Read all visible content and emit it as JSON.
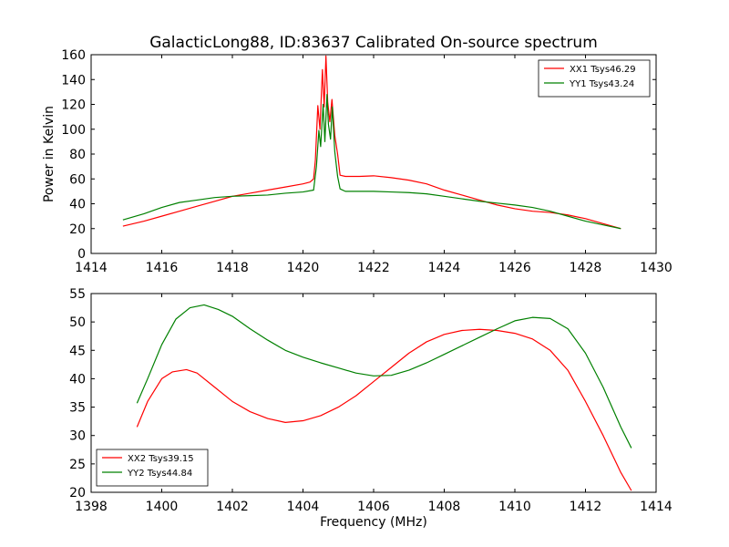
{
  "title": "GalacticLong88, ID:83637 Calibrated On-source spectrum",
  "colors": {
    "red": "#ff0000",
    "green": "#008000"
  },
  "chart_data": [
    {
      "type": "line",
      "xlabel": "",
      "ylabel": "Power in Kelvin",
      "xlim": [
        1414,
        1430
      ],
      "ylim": [
        0,
        160
      ],
      "xticks": [
        1414,
        1416,
        1418,
        1420,
        1422,
        1424,
        1426,
        1428,
        1430
      ],
      "yticks": [
        0,
        20,
        40,
        60,
        80,
        100,
        120,
        140,
        160
      ],
      "legend": "top-right",
      "grid": false,
      "series": [
        {
          "name": "XX1 Tsys46.29",
          "color": "#ff0000",
          "points": [
            [
              1414.9,
              22
            ],
            [
              1415.5,
              26
            ],
            [
              1416,
              30
            ],
            [
              1416.5,
              34
            ],
            [
              1417,
              38
            ],
            [
              1417.5,
              42
            ],
            [
              1418,
              46
            ],
            [
              1418.5,
              48.5
            ],
            [
              1419,
              51
            ],
            [
              1419.5,
              53.5
            ],
            [
              1420,
              56
            ],
            [
              1420.2,
              57.5
            ],
            [
              1420.3,
              60
            ],
            [
              1420.35,
              75
            ],
            [
              1420.42,
              119
            ],
            [
              1420.48,
              100
            ],
            [
              1420.55,
              148
            ],
            [
              1420.6,
              118
            ],
            [
              1420.65,
              159
            ],
            [
              1420.7,
              122
            ],
            [
              1420.76,
              106
            ],
            [
              1420.82,
              124
            ],
            [
              1420.9,
              95
            ],
            [
              1420.98,
              80
            ],
            [
              1421.05,
              63
            ],
            [
              1421.2,
              62
            ],
            [
              1421.6,
              62
            ],
            [
              1422,
              62.5
            ],
            [
              1422.5,
              61
            ],
            [
              1423,
              59
            ],
            [
              1423.5,
              56
            ],
            [
              1424,
              51
            ],
            [
              1424.5,
              47
            ],
            [
              1425,
              43
            ],
            [
              1425.5,
              39
            ],
            [
              1426,
              36
            ],
            [
              1426.5,
              34
            ],
            [
              1427,
              33
            ],
            [
              1427.5,
              31
            ],
            [
              1428,
              28
            ],
            [
              1428.5,
              24
            ],
            [
              1429,
              20
            ]
          ]
        },
        {
          "name": "YY1 Tsys43.24",
          "color": "#008000",
          "points": [
            [
              1414.9,
              27
            ],
            [
              1415.5,
              32
            ],
            [
              1416,
              37
            ],
            [
              1416.5,
              41
            ],
            [
              1417,
              43
            ],
            [
              1417.5,
              45
            ],
            [
              1418,
              46
            ],
            [
              1418.5,
              46.5
            ],
            [
              1419,
              47
            ],
            [
              1419.5,
              48.5
            ],
            [
              1420,
              49.5
            ],
            [
              1420.3,
              51
            ],
            [
              1420.38,
              70
            ],
            [
              1420.45,
              99
            ],
            [
              1420.5,
              86
            ],
            [
              1420.57,
              120
            ],
            [
              1420.62,
              90
            ],
            [
              1420.68,
              128
            ],
            [
              1420.72,
              104
            ],
            [
              1420.78,
              92
            ],
            [
              1420.83,
              118
            ],
            [
              1420.9,
              82
            ],
            [
              1420.98,
              62
            ],
            [
              1421.05,
              52
            ],
            [
              1421.2,
              50
            ],
            [
              1422,
              50
            ],
            [
              1422.5,
              49.5
            ],
            [
              1423,
              49
            ],
            [
              1423.5,
              48
            ],
            [
              1424,
              46
            ],
            [
              1424.5,
              44
            ],
            [
              1425,
              42
            ],
            [
              1425.5,
              40.5
            ],
            [
              1426,
              39
            ],
            [
              1426.5,
              37
            ],
            [
              1427,
              34
            ],
            [
              1427.5,
              30
            ],
            [
              1428,
              26
            ],
            [
              1428.5,
              23
            ],
            [
              1429,
              20
            ]
          ]
        }
      ]
    },
    {
      "type": "line",
      "xlabel": "Frequency (MHz)",
      "ylabel": "",
      "xlim": [
        1398,
        1414
      ],
      "ylim": [
        20,
        55
      ],
      "xticks": [
        1398,
        1400,
        1402,
        1404,
        1406,
        1408,
        1410,
        1412,
        1414
      ],
      "yticks": [
        20,
        25,
        30,
        35,
        40,
        45,
        50,
        55
      ],
      "legend": "bottom-left",
      "grid": false,
      "series": [
        {
          "name": "XX2 Tsys39.15",
          "color": "#ff0000",
          "points": [
            [
              1399.3,
              31.5
            ],
            [
              1399.6,
              36
            ],
            [
              1400,
              40
            ],
            [
              1400.3,
              41.2
            ],
            [
              1400.7,
              41.6
            ],
            [
              1401,
              41
            ],
            [
              1401.5,
              38.5
            ],
            [
              1402,
              36
            ],
            [
              1402.5,
              34.2
            ],
            [
              1403,
              33
            ],
            [
              1403.5,
              32.3
            ],
            [
              1404,
              32.6
            ],
            [
              1404.5,
              33.5
            ],
            [
              1405,
              35
            ],
            [
              1405.5,
              37
            ],
            [
              1406,
              39.5
            ],
            [
              1406.5,
              42
            ],
            [
              1407,
              44.5
            ],
            [
              1407.5,
              46.5
            ],
            [
              1408,
              47.8
            ],
            [
              1408.5,
              48.5
            ],
            [
              1409,
              48.7
            ],
            [
              1409.5,
              48.5
            ],
            [
              1410,
              48
            ],
            [
              1410.5,
              47
            ],
            [
              1411,
              45
            ],
            [
              1411.5,
              41.5
            ],
            [
              1412,
              36
            ],
            [
              1412.5,
              30
            ],
            [
              1413,
              23.5
            ],
            [
              1413.3,
              20.3
            ]
          ]
        },
        {
          "name": "YY2 Tsys44.84",
          "color": "#008000",
          "points": [
            [
              1399.3,
              35.7
            ],
            [
              1399.6,
              40
            ],
            [
              1400,
              46
            ],
            [
              1400.4,
              50.5
            ],
            [
              1400.8,
              52.5
            ],
            [
              1401.2,
              53
            ],
            [
              1401.6,
              52.2
            ],
            [
              1402,
              51
            ],
            [
              1402.5,
              48.8
            ],
            [
              1403,
              46.8
            ],
            [
              1403.5,
              45
            ],
            [
              1404,
              43.8
            ],
            [
              1404.5,
              42.8
            ],
            [
              1405,
              41.9
            ],
            [
              1405.5,
              41
            ],
            [
              1406,
              40.5
            ],
            [
              1406.5,
              40.6
            ],
            [
              1407,
              41.5
            ],
            [
              1407.5,
              42.8
            ],
            [
              1408,
              44.3
            ],
            [
              1408.5,
              45.8
            ],
            [
              1409,
              47.3
            ],
            [
              1409.5,
              48.8
            ],
            [
              1410,
              50.2
            ],
            [
              1410.5,
              50.8
            ],
            [
              1411,
              50.6
            ],
            [
              1411.5,
              48.8
            ],
            [
              1412,
              44.5
            ],
            [
              1412.5,
              38.5
            ],
            [
              1413,
              31.5
            ],
            [
              1413.3,
              27.8
            ]
          ]
        }
      ]
    }
  ]
}
